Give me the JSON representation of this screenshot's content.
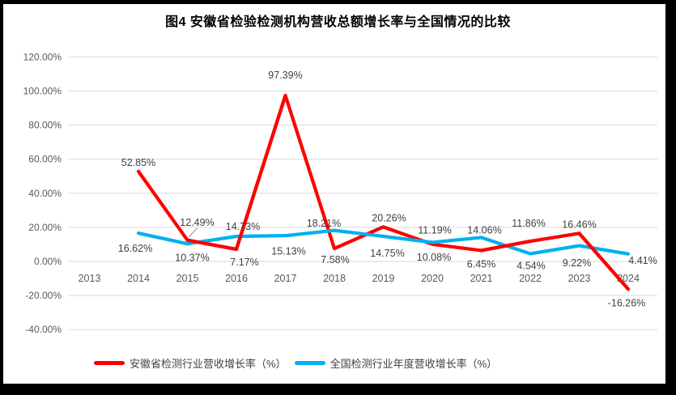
{
  "chart_data": {
    "type": "line",
    "title": "图4 安徽省检验检测机构营收总额增长率与全国情况的比较",
    "categories": [
      "2013",
      "2014",
      "2015",
      "2016",
      "2017",
      "2018",
      "2019",
      "2020",
      "2021",
      "2022",
      "2023",
      "2024"
    ],
    "series": [
      {
        "name": "安徽省检测行业营收增长率（%）",
        "color": "#FF0000",
        "values": [
          null,
          52.85,
          12.49,
          7.17,
          97.39,
          7.58,
          20.26,
          10.08,
          6.45,
          11.86,
          16.46,
          -16.26
        ],
        "label_offsets": [
          null,
          [
            0,
            -11
          ],
          [
            12,
            -22
          ],
          [
            10,
            16
          ],
          [
            0,
            -25
          ],
          [
            1,
            14
          ],
          [
            7,
            -11
          ],
          [
            2,
            16
          ],
          [
            0,
            17
          ],
          [
            -2,
            -22
          ],
          [
            0,
            -11
          ],
          [
            -2,
            17
          ]
        ]
      },
      {
        "name": "全国检测行业年度营收增长率（%）",
        "color": "#00B0F0",
        "values": [
          null,
          16.62,
          10.37,
          14.73,
          15.13,
          18.21,
          14.75,
          11.19,
          14.06,
          4.54,
          9.22,
          4.41
        ],
        "label_offsets": [
          null,
          [
            -4,
            19
          ],
          [
            6,
            17
          ],
          [
            8,
            -12
          ],
          [
            4,
            19
          ],
          [
            -13,
            -9
          ],
          [
            5,
            21
          ],
          [
            3,
            -15
          ],
          [
            4,
            -9
          ],
          [
            1,
            15
          ],
          [
            -3,
            21
          ],
          [
            18,
            8
          ]
        ]
      }
    ],
    "y_axis": {
      "min": -40,
      "max": 120,
      "step": 20,
      "ticks": [
        "120.00%",
        "100.00%",
        "80.00%",
        "60.00%",
        "40.00%",
        "20.00%",
        "0.00%",
        "-20.00%",
        "-40.00%"
      ]
    },
    "grid": "horizontal",
    "legend_position": "bottom",
    "callout": {
      "series_index": 0,
      "point_index": 2,
      "color": "#A6A6A6"
    },
    "colors": {
      "grid_line": "#D9D9D9",
      "axis_text": "#595959",
      "data_label": "#404040",
      "frame_border": "#000000",
      "background": "#FFFFFF"
    }
  }
}
